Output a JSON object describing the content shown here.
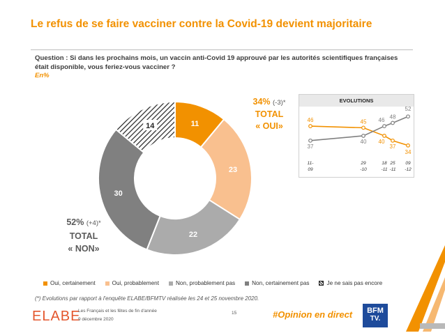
{
  "title": "Le refus de se faire vacciner contre la Covid-19 devient majoritaire",
  "question": "Question : Si dans les prochains mois, un vaccin anti-Covid 19 approuvé par les autorités scientifiques françaises était disponible, vous feriez-vous vacciner ?",
  "unit_note": "En%",
  "total_yes": {
    "pct": "34%",
    "change": "(-3)*",
    "label1": "TOTAL",
    "label2": "« OUI»"
  },
  "total_no": {
    "pct": "52%",
    "change": "(+4)*",
    "label1": "TOTAL",
    "label2": "« NON»"
  },
  "colors": {
    "oui_certainement": "#f29100",
    "oui_probablement": "#f9c08f",
    "non_probablement": "#ababab",
    "non_certainement": "#808080",
    "ne_sais_pas": "#222222",
    "accent": "#f29100"
  },
  "chart_data": [
    {
      "type": "pie",
      "variant": "donut",
      "categories": [
        "Oui, certainement",
        "Oui, probablement",
        "Non, probablement pas",
        "Non, certainement pas",
        "Je ne sais pas encore"
      ],
      "values": [
        11,
        23,
        22,
        30,
        14
      ],
      "data_labels": [
        "11",
        "23",
        "22",
        "30",
        "14"
      ],
      "legend_position": "bottom"
    },
    {
      "type": "line",
      "title": "EVOLUTIONS",
      "x": [
        "11-09",
        "29-10",
        "18-11",
        "25-11",
        "09-12"
      ],
      "x_labels": [
        [
          "11-",
          "09"
        ],
        [
          "29",
          "-10"
        ],
        [
          "18",
          "-11"
        ],
        [
          "25",
          "-11"
        ],
        [
          "09",
          "-12"
        ]
      ],
      "series": [
        {
          "values": [
            46,
            45,
            40,
            37,
            34
          ]
        },
        {
          "values": [
            37,
            40,
            46,
            48,
            52
          ]
        }
      ]
    }
  ],
  "legend": [
    {
      "label": "Oui, certainement",
      "style": "solid",
      "color": "#f29100"
    },
    {
      "label": "Oui, probablement",
      "style": "solid",
      "color": "#f9c08f"
    },
    {
      "label": "Non, probablement pas",
      "style": "solid",
      "color": "#ababab"
    },
    {
      "label": "Non, certainement pas",
      "style": "solid",
      "color": "#808080"
    },
    {
      "label": "Je ne sais pas encore",
      "style": "hatch",
      "color": "#222222"
    }
  ],
  "footnote": "(*) Evolutions par rapport à l'enquête ELABE/BFMTV réalisée les 24 et 25 novembre 2020.",
  "footer": {
    "logo": "ELABE",
    "subtitle": "Les Français et les fêtes de fin d'année",
    "date": "9 décembre 2020",
    "page": "15",
    "hashtag": "#Opinion en direct",
    "partner_line1": "BFM",
    "partner_line2": "TV."
  }
}
